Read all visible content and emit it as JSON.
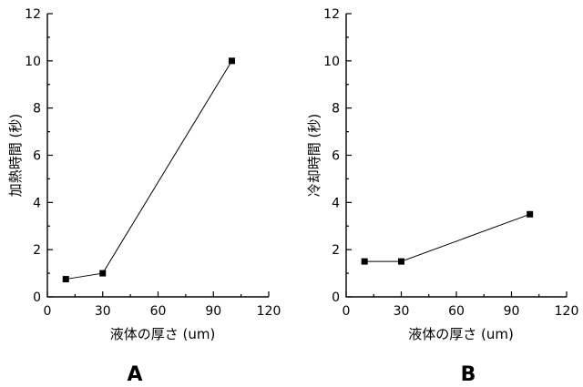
{
  "chart_data": [
    {
      "type": "line",
      "panel_label": "A",
      "xlabel": "液体の厚さ (um)",
      "ylabel": "加熱時間 (秒)",
      "xlim": [
        0,
        120
      ],
      "ylim": [
        0,
        12
      ],
      "xticks": [
        0,
        30,
        60,
        90,
        120
      ],
      "yticks": [
        0,
        2,
        4,
        6,
        8,
        10,
        12
      ],
      "grid": false,
      "series": [
        {
          "x": [
            10,
            30,
            100
          ],
          "y": [
            0.75,
            1.0,
            10.0
          ],
          "marker": "square",
          "color": "#000000"
        }
      ]
    },
    {
      "type": "line",
      "panel_label": "B",
      "xlabel": "液体の厚さ (um)",
      "ylabel": "冷却時間 (秒)",
      "xlim": [
        0,
        120
      ],
      "ylim": [
        0,
        12
      ],
      "xticks": [
        0,
        30,
        60,
        90,
        120
      ],
      "yticks": [
        0,
        2,
        4,
        6,
        8,
        10,
        12
      ],
      "grid": false,
      "series": [
        {
          "x": [
            10,
            30,
            100
          ],
          "y": [
            1.5,
            1.5,
            3.5
          ],
          "marker": "square",
          "color": "#000000"
        }
      ]
    }
  ]
}
